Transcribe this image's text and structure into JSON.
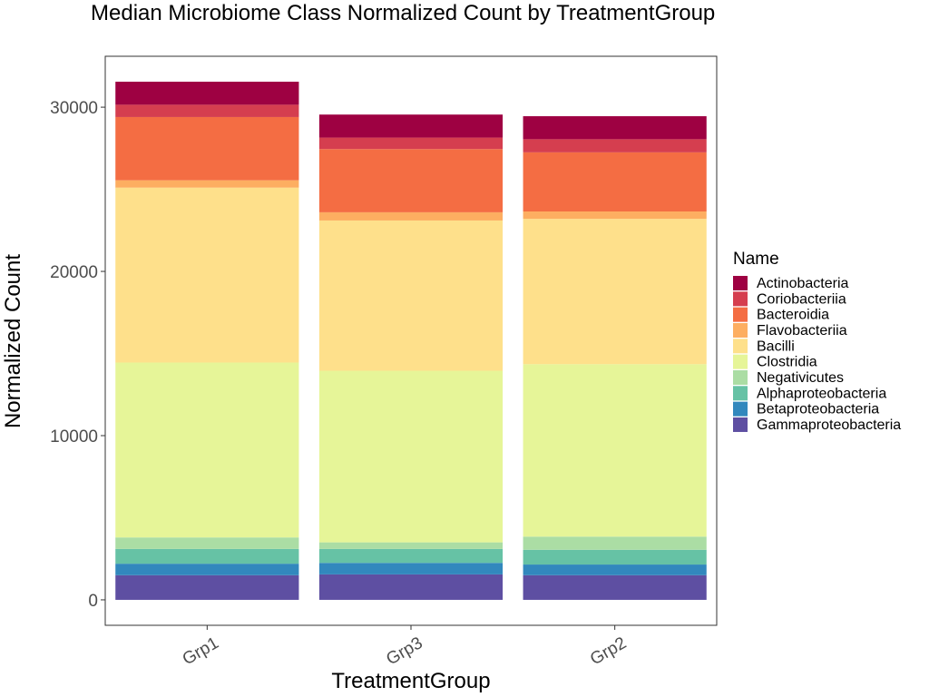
{
  "chart_data": {
    "type": "bar",
    "stacked": true,
    "title": "Median Microbiome Class Normalized Count by TreatmentGroup",
    "xlabel": "TreatmentGroup",
    "ylabel": "Normalized Count",
    "ylim": [
      -1550,
      33100
    ],
    "yticks": [
      0,
      10000,
      20000,
      30000
    ],
    "yticks_labels": [
      "0",
      "10000",
      "20000",
      "30000"
    ],
    "grid": false,
    "legend": {
      "title": "Name",
      "placement": "right"
    },
    "categories": [
      "Grp1",
      "Grp3",
      "Grp2"
    ],
    "series": [
      {
        "name": "Gammaproteobacteria",
        "color": "#5E4FA2",
        "values": [
          1500,
          1550,
          1500
        ]
      },
      {
        "name": "Betaproteobacteria",
        "color": "#3288BD",
        "values": [
          700,
          700,
          650
        ]
      },
      {
        "name": "Alphaproteobacteria",
        "color": "#66C2A5",
        "values": [
          900,
          850,
          900
        ]
      },
      {
        "name": "Negativicutes",
        "color": "#ABDDA4",
        "values": [
          700,
          400,
          800
        ]
      },
      {
        "name": "Clostridia",
        "color": "#E6F598",
        "values": [
          10650,
          10450,
          10500
        ]
      },
      {
        "name": "Bacilli",
        "color": "#FEE08B",
        "values": [
          10650,
          9150,
          8850
        ]
      },
      {
        "name": "Flavobacteriia",
        "color": "#FDAE61",
        "values": [
          450,
          500,
          450
        ]
      },
      {
        "name": "Bacteroidia",
        "color": "#F46D43",
        "values": [
          3850,
          3850,
          3600
        ]
      },
      {
        "name": "Coriobacteriia",
        "color": "#D53E4F",
        "values": [
          750,
          700,
          800
        ]
      },
      {
        "name": "Actinobacteria",
        "color": "#9E0142",
        "values": [
          1400,
          1400,
          1400
        ]
      }
    ]
  }
}
